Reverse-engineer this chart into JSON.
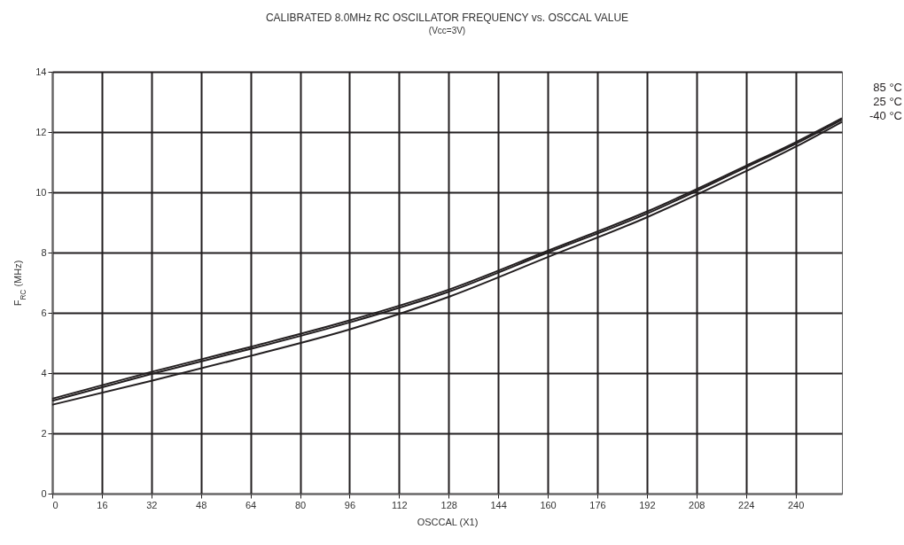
{
  "chart_data": {
    "type": "line",
    "title": "CALIBRATED 8.0MHz RC OSCILLATOR FREQUENCY vs. OSCCAL VALUE",
    "subtitle": "(Vcc=3V)",
    "xlabel": "OSCCAL (X1)",
    "ylabel": "F$_{RC}$ (MHz)",
    "x": [
      0,
      32,
      64,
      96,
      128,
      160,
      192,
      224,
      240,
      255
    ],
    "series": [
      {
        "name": "85 °C",
        "color": "#231f20",
        "values": [
          3.15,
          4.04,
          4.87,
          5.75,
          6.77,
          8.06,
          9.36,
          10.88,
          11.66,
          12.46
        ]
      },
      {
        "name": "25 °C",
        "color": "#231f20",
        "values": [
          3.08,
          3.97,
          4.8,
          5.68,
          6.7,
          8.0,
          9.29,
          10.83,
          11.61,
          12.41
        ]
      },
      {
        "name": "-40 °C",
        "color": "#231f20",
        "values": [
          2.95,
          3.74,
          4.57,
          5.45,
          6.53,
          7.85,
          9.17,
          10.7,
          11.51,
          12.34
        ]
      }
    ],
    "xlim": [
      0,
      255
    ],
    "xticks": [
      0,
      16,
      32,
      48,
      64,
      80,
      96,
      112,
      128,
      144,
      160,
      176,
      192,
      208,
      224,
      240
    ],
    "ylim": [
      0,
      14
    ],
    "yticks": [
      0,
      2,
      4,
      6,
      8,
      10,
      12,
      14
    ],
    "grid": true,
    "legend": "right",
    "marker": "none",
    "line_style": "solid"
  }
}
